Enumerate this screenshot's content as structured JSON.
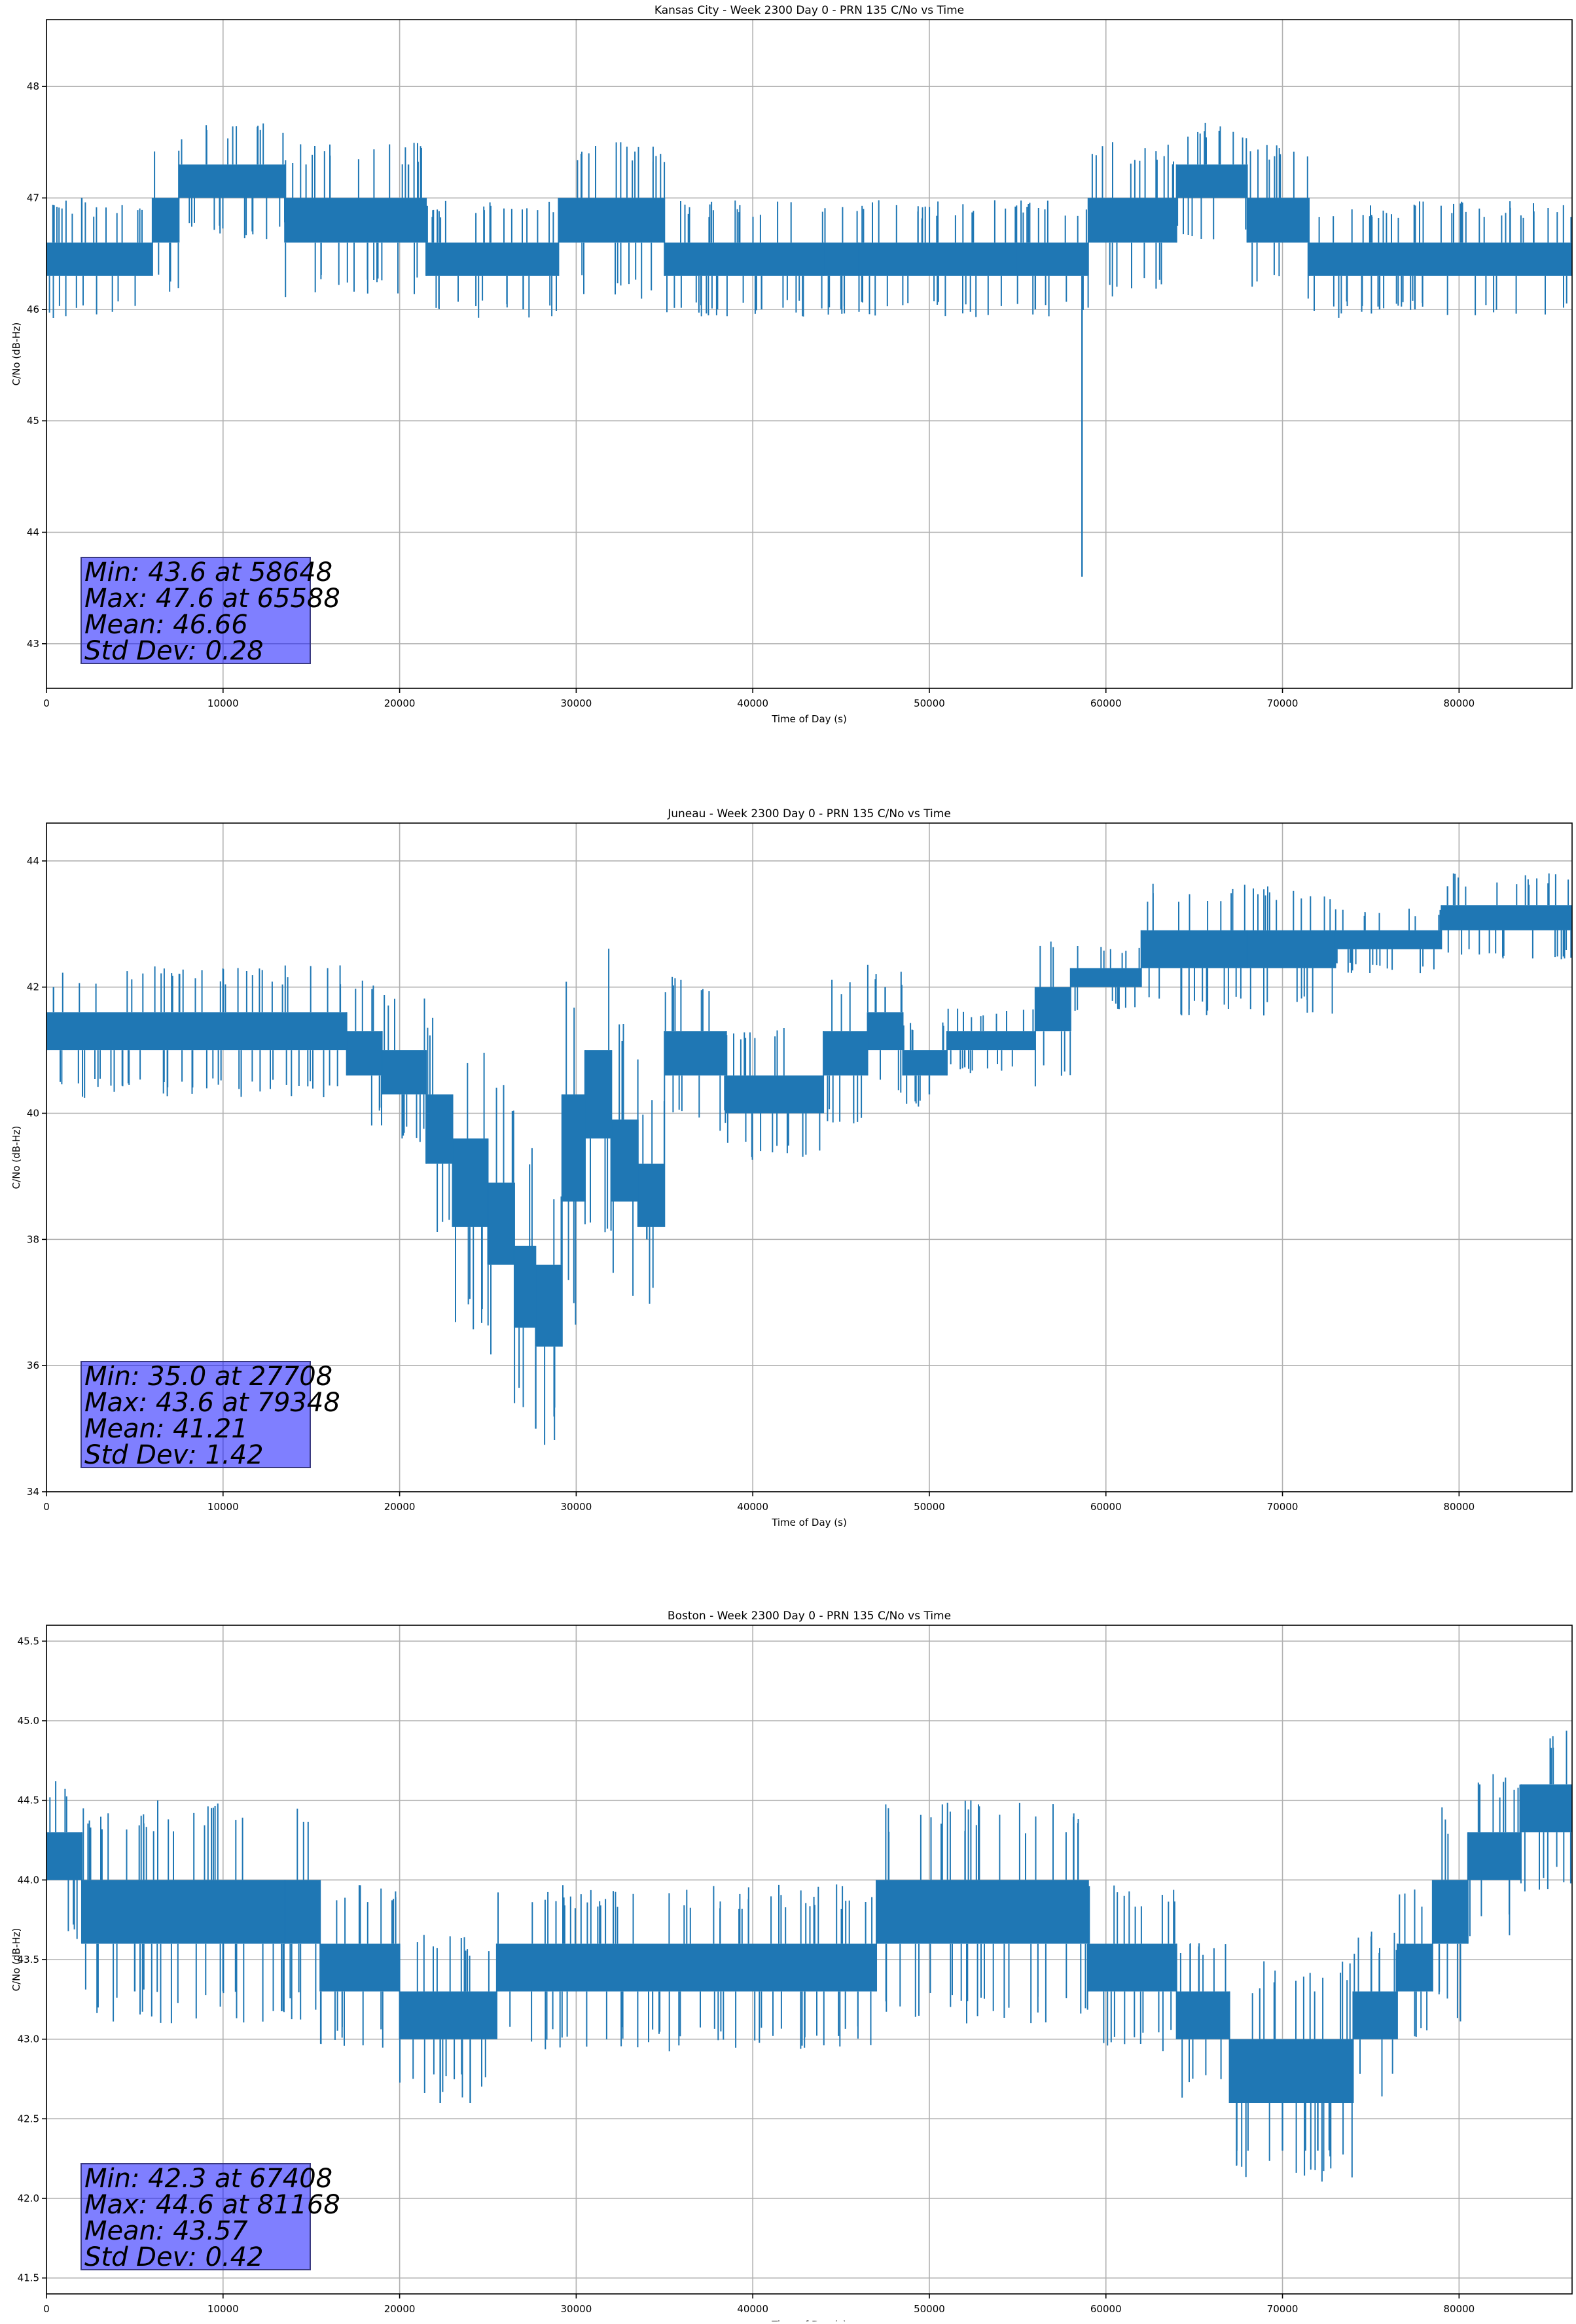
{
  "chart_data": [
    {
      "type": "line",
      "title": "Kansas City - Week 2300 Day 0 - PRN 135 C/No vs Time",
      "xlabel": "Time of Day (s)",
      "ylabel": "C/No (dB-Hz)",
      "xlim": [
        0,
        86400
      ],
      "ylim": [
        42.6,
        48.6
      ],
      "xticks": [
        0,
        10000,
        20000,
        30000,
        40000,
        50000,
        60000,
        70000,
        80000
      ],
      "yticks": [
        43,
        44,
        45,
        46,
        47,
        48
      ],
      "ytick_labels": [
        "43",
        "44",
        "45",
        "46",
        "47",
        "48"
      ],
      "grid": true,
      "color": "#1f77b4",
      "stats": [
        "Min: 43.6 at 58648",
        "Max: 47.6 at 65588",
        "Mean: 46.66",
        "Std Dev: 0.28"
      ],
      "series": [
        {
          "x": [
            0,
            6000
          ],
          "low": 46.3,
          "high": 46.6
        },
        {
          "x": [
            6000,
            7500
          ],
          "low": 46.6,
          "high": 47.0
        },
        {
          "x": [
            7500,
            13500
          ],
          "low": 47.0,
          "high": 47.3
        },
        {
          "x": [
            13500,
            21500
          ],
          "low": 46.6,
          "high": 47.0
        },
        {
          "x": [
            21500,
            29000
          ],
          "low": 46.3,
          "high": 46.6
        },
        {
          "x": [
            29000,
            35000
          ],
          "low": 46.6,
          "high": 47.0
        },
        {
          "x": [
            35000,
            44000
          ],
          "low": 46.3,
          "high": 46.6
        },
        {
          "x": [
            44000,
            46000
          ],
          "low": 46.3,
          "high": 46.6
        },
        {
          "x": [
            46000,
            55000
          ],
          "low": 46.3,
          "high": 46.6
        },
        {
          "x": [
            55000,
            59000
          ],
          "low": 46.3,
          "high": 46.6
        },
        {
          "x": [
            59000,
            64000
          ],
          "low": 46.6,
          "high": 47.0
        },
        {
          "x": [
            64000,
            68000
          ],
          "low": 47.0,
          "high": 47.3
        },
        {
          "x": [
            68000,
            71500
          ],
          "low": 46.6,
          "high": 47.0
        },
        {
          "x": [
            71500,
            86400
          ],
          "low": 46.3,
          "high": 46.6
        }
      ],
      "spikes": [
        {
          "x": 58648,
          "y": 43.6
        },
        {
          "x": 65588,
          "y": 47.6
        },
        {
          "x": 27000,
          "y": 46.0
        },
        {
          "x": 38000,
          "y": 46.0
        },
        {
          "x": 40500,
          "y": 46.0
        },
        {
          "x": 45000,
          "y": 46.0
        },
        {
          "x": 56000,
          "y": 46.0
        },
        {
          "x": 75500,
          "y": 46.0
        },
        {
          "x": 77500,
          "y": 46.0
        },
        {
          "x": 20500,
          "y": 47.3
        },
        {
          "x": 2000,
          "y": 47.0
        }
      ]
    },
    {
      "type": "line",
      "title": "Juneau - Week 2300 Day 0 - PRN 135 C/No vs Time",
      "xlabel": "Time of Day (s)",
      "ylabel": "C/No (dB-Hz)",
      "xlim": [
        0,
        86400
      ],
      "ylim": [
        34,
        44.6
      ],
      "xticks": [
        0,
        10000,
        20000,
        30000,
        40000,
        50000,
        60000,
        70000,
        80000
      ],
      "yticks": [
        34,
        36,
        38,
        40,
        42,
        44
      ],
      "ytick_labels": [
        "34",
        "36",
        "38",
        "40",
        "42",
        "44"
      ],
      "grid": true,
      "color": "#1f77b4",
      "stats": [
        "Min: 35.0 at 27708",
        "Max: 43.6 at 79348",
        "Mean: 41.21",
        "Std Dev: 1.42"
      ],
      "series": [
        {
          "x": [
            0,
            17000
          ],
          "low": 41.0,
          "high": 41.6
        },
        {
          "x": [
            17000,
            19000
          ],
          "low": 40.6,
          "high": 41.3
        },
        {
          "x": [
            19000,
            21500
          ],
          "low": 40.3,
          "high": 41.0
        },
        {
          "x": [
            21500,
            23000
          ],
          "low": 39.2,
          "high": 40.3
        },
        {
          "x": [
            23000,
            25000
          ],
          "low": 38.2,
          "high": 39.6
        },
        {
          "x": [
            25000,
            26500
          ],
          "low": 37.6,
          "high": 38.9
        },
        {
          "x": [
            26500,
            27700
          ],
          "low": 36.6,
          "high": 37.9
        },
        {
          "x": [
            27700,
            29200
          ],
          "low": 36.3,
          "high": 37.6
        },
        {
          "x": [
            29200,
            30500
          ],
          "low": 38.6,
          "high": 40.3
        },
        {
          "x": [
            30500,
            32000
          ],
          "low": 39.6,
          "high": 41.0
        },
        {
          "x": [
            32000,
            33500
          ],
          "low": 38.6,
          "high": 39.9
        },
        {
          "x": [
            33500,
            35000
          ],
          "low": 38.2,
          "high": 39.2
        },
        {
          "x": [
            35000,
            38500
          ],
          "low": 40.6,
          "high": 41.3
        },
        {
          "x": [
            38500,
            44000
          ],
          "low": 40.0,
          "high": 40.6
        },
        {
          "x": [
            44000,
            46500
          ],
          "low": 40.6,
          "high": 41.3
        },
        {
          "x": [
            46500,
            48500
          ],
          "low": 41.0,
          "high": 41.6
        },
        {
          "x": [
            48500,
            51000
          ],
          "low": 40.6,
          "high": 41.0
        },
        {
          "x": [
            51000,
            56000
          ],
          "low": 41.0,
          "high": 41.3
        },
        {
          "x": [
            56000,
            58000
          ],
          "low": 41.3,
          "high": 42.0
        },
        {
          "x": [
            58000,
            62000
          ],
          "low": 42.0,
          "high": 42.3
        },
        {
          "x": [
            62000,
            68000
          ],
          "low": 42.3,
          "high": 42.9
        },
        {
          "x": [
            68000,
            73000
          ],
          "low": 42.3,
          "high": 42.9
        },
        {
          "x": [
            73000,
            79000
          ],
          "low": 42.6,
          "high": 42.9
        },
        {
          "x": [
            79000,
            86400
          ],
          "low": 42.9,
          "high": 43.3
        }
      ],
      "spikes": [
        {
          "x": 27708,
          "y": 35.0
        },
        {
          "x": 79348,
          "y": 43.6
        },
        {
          "x": 34000,
          "y": 38.0
        },
        {
          "x": 400,
          "y": 42.0
        },
        {
          "x": 47500,
          "y": 42.0
        },
        {
          "x": 50000,
          "y": 40.3
        }
      ]
    },
    {
      "type": "line",
      "title": "Boston - Week 2300 Day 0 - PRN 135 C/No vs Time",
      "xlabel": "Time of Day (s)",
      "ylabel": "C/No (dB-Hz)",
      "xlim": [
        0,
        86400
      ],
      "ylim": [
        41.4,
        45.6
      ],
      "xticks": [
        0,
        10000,
        20000,
        30000,
        40000,
        50000,
        60000,
        70000,
        80000
      ],
      "yticks": [
        41.5,
        42.0,
        42.5,
        43.0,
        43.5,
        44.0,
        44.5,
        45.0,
        45.5
      ],
      "ytick_labels": [
        "41.5",
        "42.0",
        "42.5",
        "43.0",
        "43.5",
        "44.0",
        "44.5",
        "45.0",
        "45.5"
      ],
      "grid": true,
      "color": "#1f77b4",
      "stats": [
        "Min: 42.3 at 67408",
        "Max: 44.6 at 81168",
        "Mean: 43.57",
        "Std Dev: 0.42"
      ],
      "series": [
        {
          "x": [
            0,
            2000
          ],
          "low": 44.0,
          "high": 44.3
        },
        {
          "x": [
            2000,
            13500
          ],
          "low": 43.6,
          "high": 44.0
        },
        {
          "x": [
            13500,
            15500
          ],
          "low": 43.6,
          "high": 44.0
        },
        {
          "x": [
            15500,
            20000
          ],
          "low": 43.3,
          "high": 43.6
        },
        {
          "x": [
            20000,
            25500
          ],
          "low": 43.0,
          "high": 43.3
        },
        {
          "x": [
            25500,
            47000
          ],
          "low": 43.3,
          "high": 43.6
        },
        {
          "x": [
            47000,
            59000
          ],
          "low": 43.6,
          "high": 44.0
        },
        {
          "x": [
            59000,
            64000
          ],
          "low": 43.3,
          "high": 43.6
        },
        {
          "x": [
            64000,
            67000
          ],
          "low": 43.0,
          "high": 43.3
        },
        {
          "x": [
            67000,
            74000
          ],
          "low": 42.6,
          "high": 43.0
        },
        {
          "x": [
            74000,
            76500
          ],
          "low": 43.0,
          "high": 43.3
        },
        {
          "x": [
            76500,
            78500
          ],
          "low": 43.3,
          "high": 43.6
        },
        {
          "x": [
            78500,
            80500
          ],
          "low": 43.6,
          "high": 44.0
        },
        {
          "x": [
            80500,
            83500
          ],
          "low": 44.0,
          "high": 44.3
        },
        {
          "x": [
            83500,
            86400
          ],
          "low": 44.3,
          "high": 44.6
        }
      ],
      "spikes": [
        {
          "x": 67408,
          "y": 42.3
        },
        {
          "x": 81168,
          "y": 44.6
        },
        {
          "x": 22300,
          "y": 42.6
        },
        {
          "x": 24000,
          "y": 42.6
        },
        {
          "x": 70000,
          "y": 42.3
        },
        {
          "x": 71300,
          "y": 42.3
        },
        {
          "x": 72000,
          "y": 42.3
        },
        {
          "x": 5000,
          "y": 43.3
        },
        {
          "x": 10000,
          "y": 43.3
        }
      ]
    }
  ]
}
